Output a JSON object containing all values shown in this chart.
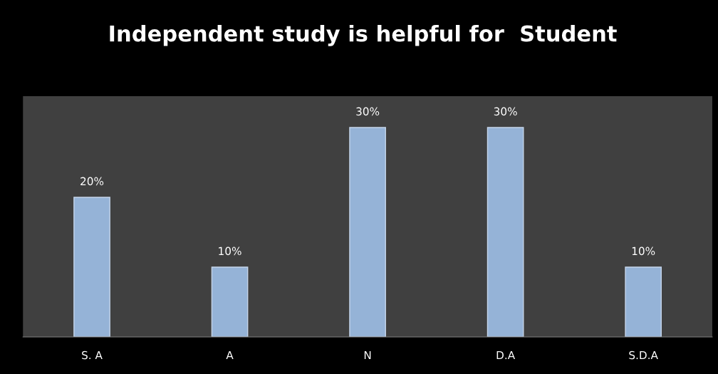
{
  "chart_data": {
    "type": "bar",
    "title": "Independent study is helpful for  Student",
    "categories": [
      "S. A",
      "A",
      "N",
      "D.A",
      "S.D.A"
    ],
    "values": [
      20,
      10,
      30,
      30,
      10
    ],
    "value_labels": [
      "20%",
      "10%",
      "30%",
      "30%",
      "10%"
    ],
    "color": "#95b3d7",
    "ylim": [
      0,
      34.5
    ],
    "tick_labels": "x",
    "grid": false,
    "legend": false
  }
}
